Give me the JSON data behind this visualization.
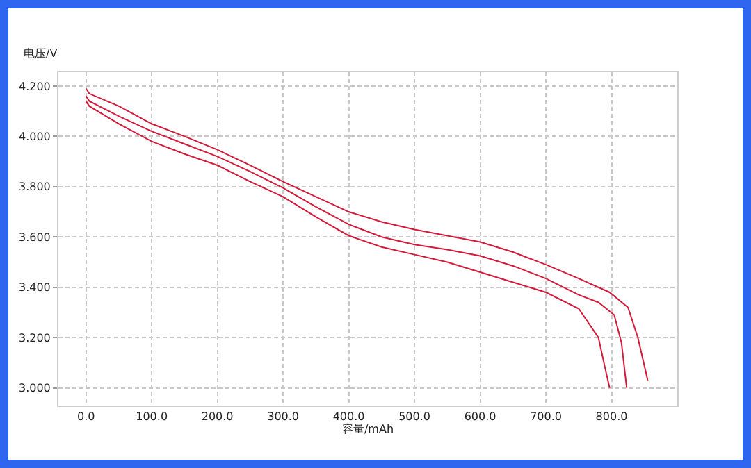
{
  "chart_data": {
    "type": "line",
    "xlabel": "容量/mAh",
    "ylabel": "电压/V",
    "xlim": [
      -42,
      900
    ],
    "ylim": [
      2.93,
      4.255
    ],
    "xticks": [
      {
        "value": 0,
        "label": "0.0"
      },
      {
        "value": 100,
        "label": "100.0"
      },
      {
        "value": 200,
        "label": "200.0"
      },
      {
        "value": 300,
        "label": "300.0"
      },
      {
        "value": 400,
        "label": "400.0"
      },
      {
        "value": 500,
        "label": "500.0"
      },
      {
        "value": 600,
        "label": "600.0"
      },
      {
        "value": 700,
        "label": "700.0"
      },
      {
        "value": 800,
        "label": "800.0"
      }
    ],
    "yticks": [
      {
        "value": 3.0,
        "label": "3.000"
      },
      {
        "value": 3.2,
        "label": "3.200"
      },
      {
        "value": 3.4,
        "label": "3.400"
      },
      {
        "value": 3.6,
        "label": "3.600"
      },
      {
        "value": 3.8,
        "label": "3.800"
      },
      {
        "value": 4.0,
        "label": "4.000"
      },
      {
        "value": 4.2,
        "label": "4.200"
      }
    ],
    "grid": true,
    "marker": "none",
    "line_style": "solid",
    "series": [
      {
        "color": "#d41a3a",
        "x": [
          0,
          5,
          50,
          100,
          150,
          200,
          250,
          300,
          350,
          400,
          450,
          500,
          550,
          600,
          650,
          700,
          750,
          797,
          825,
          840,
          855
        ],
        "values": [
          4.19,
          4.17,
          4.12,
          4.05,
          4.0,
          3.947,
          3.885,
          3.82,
          3.76,
          3.7,
          3.66,
          3.63,
          3.605,
          3.58,
          3.54,
          3.49,
          3.435,
          3.38,
          3.32,
          3.2,
          3.03
        ]
      },
      {
        "color": "#d41a3a",
        "x": [
          0,
          5,
          50,
          100,
          150,
          200,
          250,
          300,
          350,
          400,
          450,
          500,
          550,
          600,
          650,
          700,
          750,
          780,
          804,
          815,
          823
        ],
        "values": [
          4.16,
          4.14,
          4.08,
          4.02,
          3.97,
          3.92,
          3.86,
          3.795,
          3.72,
          3.65,
          3.6,
          3.57,
          3.55,
          3.525,
          3.485,
          3.435,
          3.37,
          3.34,
          3.29,
          3.18,
          3.0
        ]
      },
      {
        "color": "#d41a3a",
        "x": [
          0,
          5,
          50,
          100,
          150,
          200,
          250,
          300,
          350,
          400,
          450,
          500,
          550,
          600,
          650,
          700,
          750,
          780,
          790,
          797
        ],
        "values": [
          4.14,
          4.12,
          4.05,
          3.98,
          3.93,
          3.885,
          3.82,
          3.76,
          3.68,
          3.605,
          3.56,
          3.53,
          3.5,
          3.46,
          3.42,
          3.38,
          3.315,
          3.2,
          3.08,
          3.0
        ]
      }
    ]
  }
}
